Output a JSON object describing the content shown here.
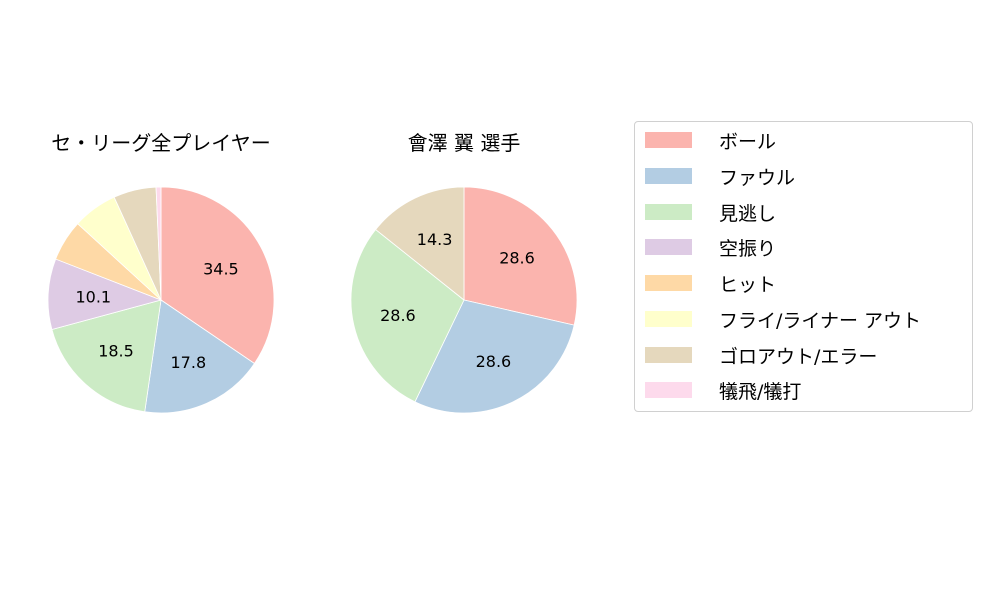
{
  "chart_data": [
    {
      "type": "pie",
      "title": "セ・リーグ全プレイヤー",
      "categories": [
        "ボール",
        "ファウル",
        "見逃し",
        "空振り",
        "ヒット",
        "フライ/ライナー アウト",
        "ゴロアウト/エラー",
        "犠飛/犠打"
      ],
      "values": [
        34.5,
        17.8,
        18.5,
        10.1,
        5.9,
        6.4,
        6.1,
        0.7
      ],
      "labels_shown": [
        "34.5",
        "17.8",
        "18.5",
        "10.1",
        "",
        "",
        "",
        ""
      ],
      "start_angle": 90,
      "direction": "clockwise"
    },
    {
      "type": "pie",
      "title": "會澤 翼  選手",
      "categories": [
        "ボール",
        "ファウル",
        "見逃し",
        "空振り",
        "ヒット",
        "フライ/ライナー アウト",
        "ゴロアウト/エラー",
        "犠飛/犠打"
      ],
      "values": [
        28.6,
        28.6,
        28.6,
        0,
        0,
        0,
        14.3,
        0
      ],
      "labels_shown": [
        "28.6",
        "28.6",
        "28.6",
        "",
        "",
        "",
        "14.3",
        ""
      ],
      "start_angle": 90,
      "direction": "clockwise"
    }
  ],
  "legend": {
    "position": "right",
    "items": [
      {
        "label": "ボール",
        "color": "#fbb4ae"
      },
      {
        "label": "ファウル",
        "color": "#b3cde3"
      },
      {
        "label": "見逃し",
        "color": "#ccebc5"
      },
      {
        "label": "空振り",
        "color": "#decbe4"
      },
      {
        "label": "ヒット",
        "color": "#fed9a6"
      },
      {
        "label": "フライ/ライナー アウト",
        "color": "#ffffcc"
      },
      {
        "label": "ゴロアウト/エラー",
        "color": "#e5d8bd"
      },
      {
        "label": "犠飛/犠打",
        "color": "#fddaec"
      }
    ]
  },
  "titles": {
    "left": "セ・リーグ全プレイヤー",
    "right": "會澤 翼  選手"
  }
}
